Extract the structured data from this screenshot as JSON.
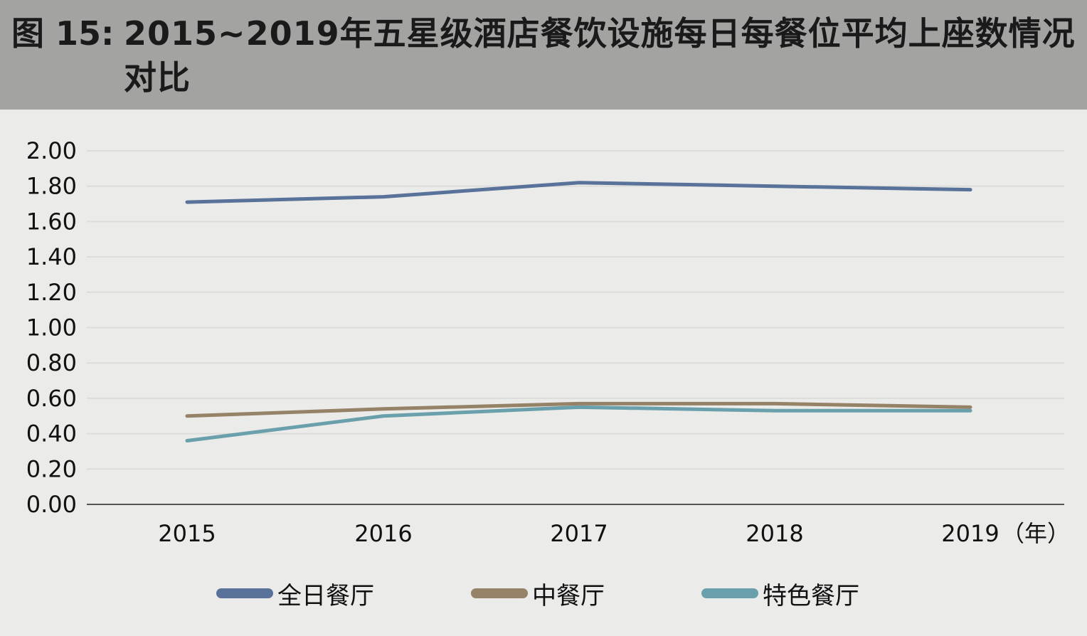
{
  "header": {
    "figure_label": "图 15:",
    "title": "2015~2019年五星级酒店餐饮设施每日每餐位平均上座数情况对比"
  },
  "chart_data": {
    "type": "line",
    "categories": [
      "2015",
      "2016",
      "2017",
      "2018",
      "2019"
    ],
    "x_unit_suffix": "（年）",
    "ylim": [
      0,
      2
    ],
    "yticks": [
      "0.00",
      "0.20",
      "0.40",
      "0.60",
      "0.80",
      "1.00",
      "1.20",
      "1.40",
      "1.60",
      "1.80",
      "2.00"
    ],
    "grid": true,
    "legend_position": "bottom",
    "series": [
      {
        "name": "全日餐厅",
        "color": "#58729a",
        "values": [
          1.71,
          1.74,
          1.82,
          1.8,
          1.78
        ]
      },
      {
        "name": "中餐厅",
        "color": "#958267",
        "values": [
          0.5,
          0.54,
          0.57,
          0.57,
          0.55
        ]
      },
      {
        "name": "特色餐厅",
        "color": "#6aa0ab",
        "values": [
          0.36,
          0.5,
          0.55,
          0.53,
          0.53
        ]
      }
    ]
  }
}
